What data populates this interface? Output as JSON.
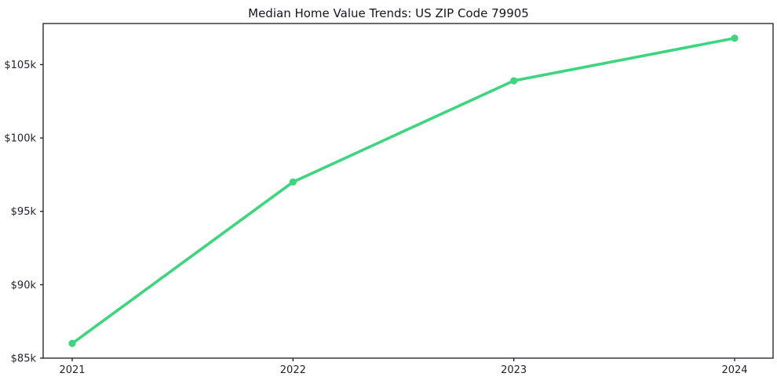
{
  "chart_data": {
    "type": "line",
    "title": "Median Home Value Trends: US ZIP Code 79905",
    "x": [
      2021,
      2022,
      2023,
      2024
    ],
    "x_labels": [
      "2021",
      "2022",
      "2023",
      "2024"
    ],
    "series": [
      {
        "name": "Median Home Value",
        "values": [
          86000,
          97000,
          103900,
          106800
        ]
      }
    ],
    "ylim": [
      85000,
      107800
    ],
    "yticks": [
      85000,
      90000,
      95000,
      100000,
      105000
    ],
    "ytick_labels": [
      "$85k",
      "$90k",
      "$95k",
      "$100k",
      "$105k"
    ],
    "xlabel": "",
    "ylabel": "",
    "grid": false,
    "legend": "none",
    "line_color": "#3dd67f",
    "marker": "circle",
    "background": "#ffffff",
    "axis_color": "#1a1a2e",
    "tick_label_color": "#23232e"
  }
}
